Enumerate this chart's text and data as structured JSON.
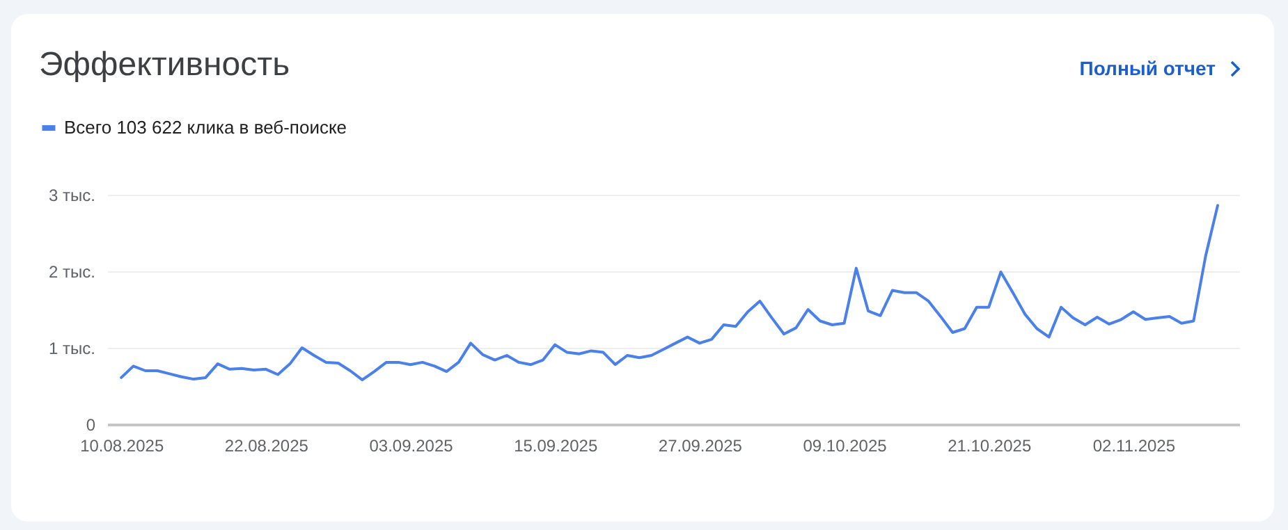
{
  "chart_data": {
    "type": "line",
    "title": "Эффективность",
    "annotations": [
      "Полный отчет"
    ],
    "x": [
      "2025-08-10",
      "2025-08-11",
      "2025-08-12",
      "2025-08-13",
      "2025-08-14",
      "2025-08-15",
      "2025-08-16",
      "2025-08-17",
      "2025-08-18",
      "2025-08-19",
      "2025-08-20",
      "2025-08-21",
      "2025-08-22",
      "2025-08-23",
      "2025-08-24",
      "2025-08-25",
      "2025-08-26",
      "2025-08-27",
      "2025-08-28",
      "2025-08-29",
      "2025-08-30",
      "2025-08-31",
      "2025-09-01",
      "2025-09-02",
      "2025-09-03",
      "2025-09-04",
      "2025-09-05",
      "2025-09-06",
      "2025-09-07",
      "2025-09-08",
      "2025-09-09",
      "2025-09-10",
      "2025-09-11",
      "2025-09-12",
      "2025-09-13",
      "2025-09-14",
      "2025-09-15",
      "2025-09-16",
      "2025-09-17",
      "2025-09-18",
      "2025-09-19",
      "2025-09-20",
      "2025-09-21",
      "2025-09-22",
      "2025-09-23",
      "2025-09-24",
      "2025-09-25",
      "2025-09-26",
      "2025-09-27",
      "2025-09-28",
      "2025-09-29",
      "2025-09-30",
      "2025-10-01",
      "2025-10-02",
      "2025-10-03",
      "2025-10-04",
      "2025-10-05",
      "2025-10-06",
      "2025-10-07",
      "2025-10-08",
      "2025-10-09",
      "2025-10-10",
      "2025-10-11",
      "2025-10-12",
      "2025-10-13",
      "2025-10-14",
      "2025-10-15",
      "2025-10-16",
      "2025-10-17",
      "2025-10-18",
      "2025-10-19",
      "2025-10-20",
      "2025-10-21",
      "2025-10-22",
      "2025-10-23",
      "2025-10-24",
      "2025-10-25",
      "2025-10-26",
      "2025-10-27",
      "2025-10-28",
      "2025-10-29",
      "2025-10-30",
      "2025-10-31",
      "2025-11-01",
      "2025-11-02",
      "2025-11-03",
      "2025-11-04",
      "2025-11-05",
      "2025-11-06",
      "2025-11-07",
      "2025-11-08",
      "2025-11-09"
    ],
    "series": [
      {
        "name": "Всего 103 622 клика в веб-поиске",
        "color": "#4a80ec",
        "values": [
          0.61,
          0.76,
          0.7,
          0.7,
          0.66,
          0.62,
          0.59,
          0.61,
          0.79,
          0.72,
          0.73,
          0.71,
          0.72,
          0.65,
          0.79,
          1.0,
          0.9,
          0.81,
          0.8,
          0.7,
          0.58,
          0.69,
          0.81,
          0.81,
          0.78,
          0.81,
          0.76,
          0.69,
          0.81,
          1.06,
          0.91,
          0.84,
          0.9,
          0.81,
          0.78,
          0.84,
          1.04,
          0.94,
          0.92,
          0.96,
          0.94,
          0.78,
          0.9,
          0.87,
          0.9,
          0.98,
          1.06,
          1.14,
          1.06,
          1.11,
          1.3,
          1.28,
          1.47,
          1.61,
          1.39,
          1.18,
          1.26,
          1.5,
          1.35,
          1.3,
          1.32,
          2.04,
          1.48,
          1.42,
          1.75,
          1.72,
          1.72,
          1.61,
          1.41,
          1.2,
          1.25,
          1.53,
          1.53,
          1.99,
          1.72,
          1.44,
          1.25,
          1.14,
          1.53,
          1.39,
          1.3,
          1.4,
          1.31,
          1.37,
          1.47,
          1.37,
          1.39,
          1.41,
          1.32,
          1.35,
          2.2,
          2.86
        ]
      }
    ],
    "xlim": [
      "2025-08-08T20:00",
      "2025-11-10T19:00"
    ],
    "xticks": [
      {
        "value": "2025-08-10",
        "label": "10.08.2025"
      },
      {
        "value": "2025-08-22",
        "label": "22.08.2025"
      },
      {
        "value": "2025-09-03",
        "label": "03.09.2025"
      },
      {
        "value": "2025-09-15",
        "label": "15.09.2025"
      },
      {
        "value": "2025-09-27",
        "label": "27.09.2025"
      },
      {
        "value": "2025-10-09",
        "label": "09.10.2025"
      },
      {
        "value": "2025-10-21",
        "label": "21.10.2025"
      },
      {
        "value": "2025-11-02",
        "label": "02.11.2025"
      }
    ],
    "ylim": [
      0,
      3
    ],
    "yticks": [
      0,
      {
        "value": 1,
        "label": "1 тыс."
      },
      {
        "value": 2,
        "label": "2 тыс."
      },
      {
        "value": 3,
        "label": "3 тыс."
      }
    ],
    "grid": "y",
    "legend": "top left",
    "marker": "none",
    "line_style": "solid"
  }
}
